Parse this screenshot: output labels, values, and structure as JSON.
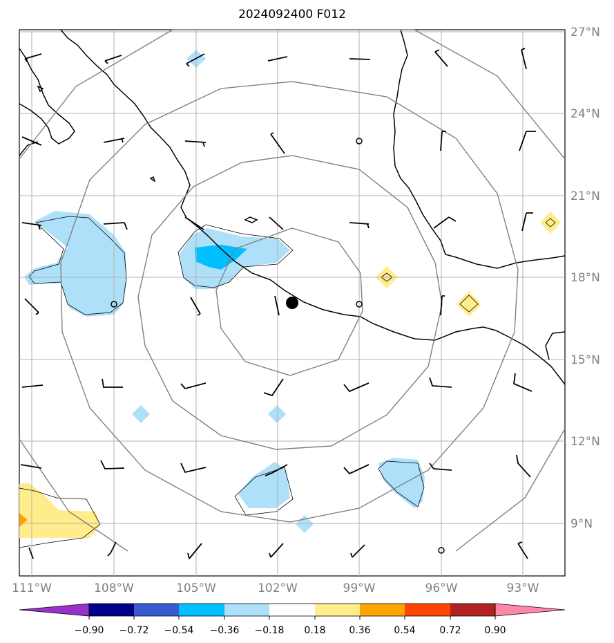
{
  "title": "2024092400 F012",
  "lon_labels": [
    "111°W",
    "108°W",
    "105°W",
    "102°W",
    "99°W",
    "96°W",
    "93°W"
  ],
  "lat_labels": [
    "27°N",
    "24°N",
    "21°N",
    "18°N",
    "15°N",
    "12°N",
    "9°N"
  ],
  "colorbar": {
    "tick_labels": [
      "−0.90",
      "−0.72",
      "−0.54",
      "−0.36",
      "−0.18",
      "0.18",
      "0.36",
      "0.54",
      "0.72",
      "0.90"
    ],
    "colors": [
      "#9932cc",
      "#00008b",
      "#3a5bd0",
      "#00bfff",
      "#aee0fa",
      "#ffffff",
      "#ffec8b",
      "#ffa500",
      "#ff4500",
      "#b22222",
      "#ff88aa"
    ]
  },
  "colors": {
    "grid": "#b0b0b0",
    "range_rings": "#808080",
    "coast": "#000000",
    "light_blue": "#aee0fa",
    "blue": "#00bfff",
    "light_yellow": "#ffec8b",
    "orange": "#ffa500"
  },
  "center_marker": {
    "lon": -101.5,
    "lat": 17.1
  },
  "range_rings": {
    "count": 4
  }
}
